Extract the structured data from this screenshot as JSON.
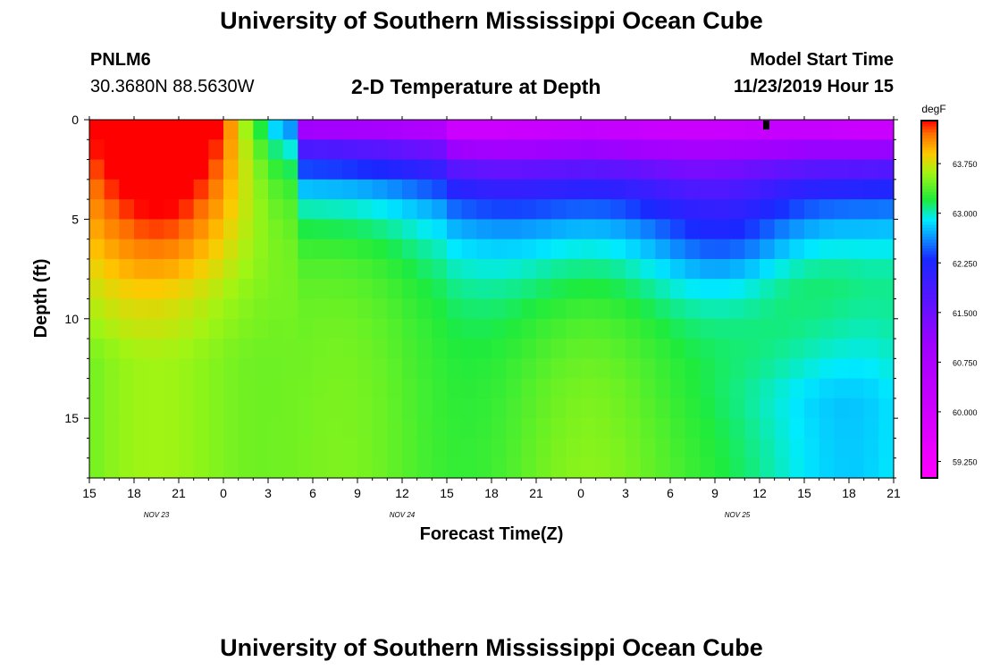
{
  "header": {
    "title": "University of Southern Mississippi Ocean Cube",
    "footer_title": "University of Southern Mississippi Ocean Cube",
    "station_id": "PNLM6",
    "station_coords": "30.3680N 88.5630W",
    "plot_title": "2-D Temperature at Depth",
    "model_start_label": "Model Start Time",
    "model_start_value": "11/23/2019 Hour 15"
  },
  "chart_data": {
    "type": "heatmap",
    "title": "2-D Temperature at Depth",
    "xlabel": "Forecast Time(Z)",
    "ylabel": "Depth (ft)",
    "x_ticks": [
      "15",
      "18",
      "21",
      "0",
      "3",
      "6",
      "9",
      "12",
      "15",
      "18",
      "21",
      "0",
      "3",
      "6",
      "9",
      "12",
      "15",
      "18",
      "21"
    ],
    "date_labels": [
      {
        "text": "NOV 23",
        "tick_index": 1.5
      },
      {
        "text": "NOV 24",
        "tick_index": 7
      },
      {
        "text": "NOV 25",
        "tick_index": 14.5
      }
    ],
    "y_ticks": [
      0,
      5,
      10,
      15
    ],
    "ylim": [
      0,
      18
    ],
    "y_inverted": true,
    "units": "degF",
    "colorbar_ticks": [
      "63.750",
      "63.000",
      "62.250",
      "61.500",
      "60.750",
      "60.000",
      "59.250"
    ],
    "colorbar_values": [
      63.75,
      63.0,
      62.25,
      61.5,
      60.75,
      60.0,
      59.25
    ],
    "value_range": [
      59.0,
      64.4
    ],
    "colors": {
      "hot": "#ff0000",
      "warm": "#ff9900",
      "green": "#44ee00",
      "cyan": "#00ffdd",
      "blue": "#1133ff",
      "purple": "#9900ff",
      "magenta": "#ff00ff"
    }
  }
}
